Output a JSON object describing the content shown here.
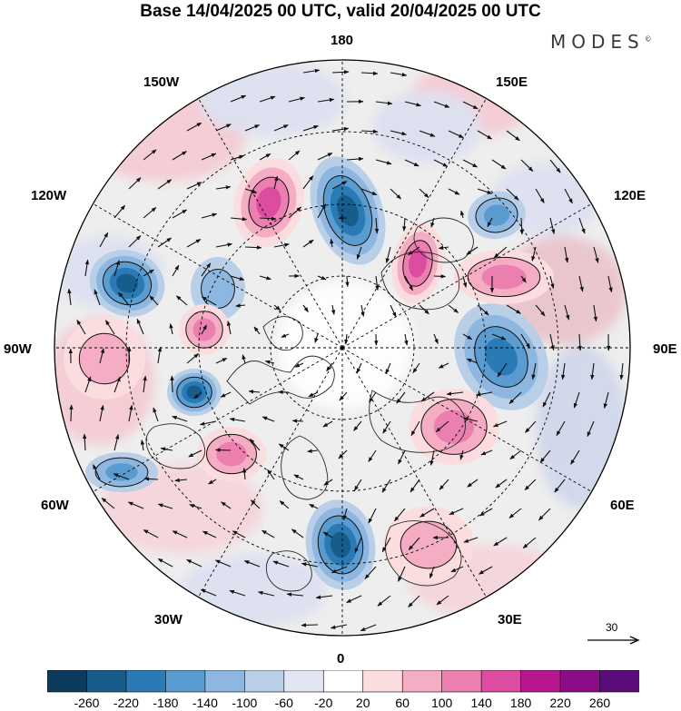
{
  "title": "Base 14/04/2025 00 UTC, valid 20/04/2025 00 UTC",
  "brand": "MODES",
  "brand_mark": "©",
  "longitude_labels": {
    "lon_180": "180",
    "lon_150e": "150E",
    "lon_120e": "120E",
    "lon_90e": "90E",
    "lon_60e": "60E",
    "lon_30e": "30E",
    "lon_0": "0",
    "lon_30w": "30W",
    "lon_60w": "60W",
    "lon_90w": "90W",
    "lon_120w": "120W",
    "lon_150w": "150W"
  },
  "vector_scale_label": "30",
  "colorbar": {
    "ticks": [
      "-260",
      "-220",
      "-180",
      "-140",
      "-100",
      "-60",
      "-20",
      "20",
      "60",
      "100",
      "140",
      "180",
      "220",
      "260"
    ],
    "colors": [
      "#0d3b5e",
      "#165d8c",
      "#2a7ab5",
      "#5a9bd0",
      "#8db7e0",
      "#b9cfe8",
      "#e2e6f3",
      "#ffffff",
      "#fbdde0",
      "#f4adc3",
      "#eb7fb0",
      "#dc4ca0",
      "#b8178f",
      "#8a0d87",
      "#5a0d7a"
    ]
  },
  "map_colors": {
    "land_outline": "#2b2b2b",
    "ocean": "#ffffff",
    "grid": "#000000"
  }
}
